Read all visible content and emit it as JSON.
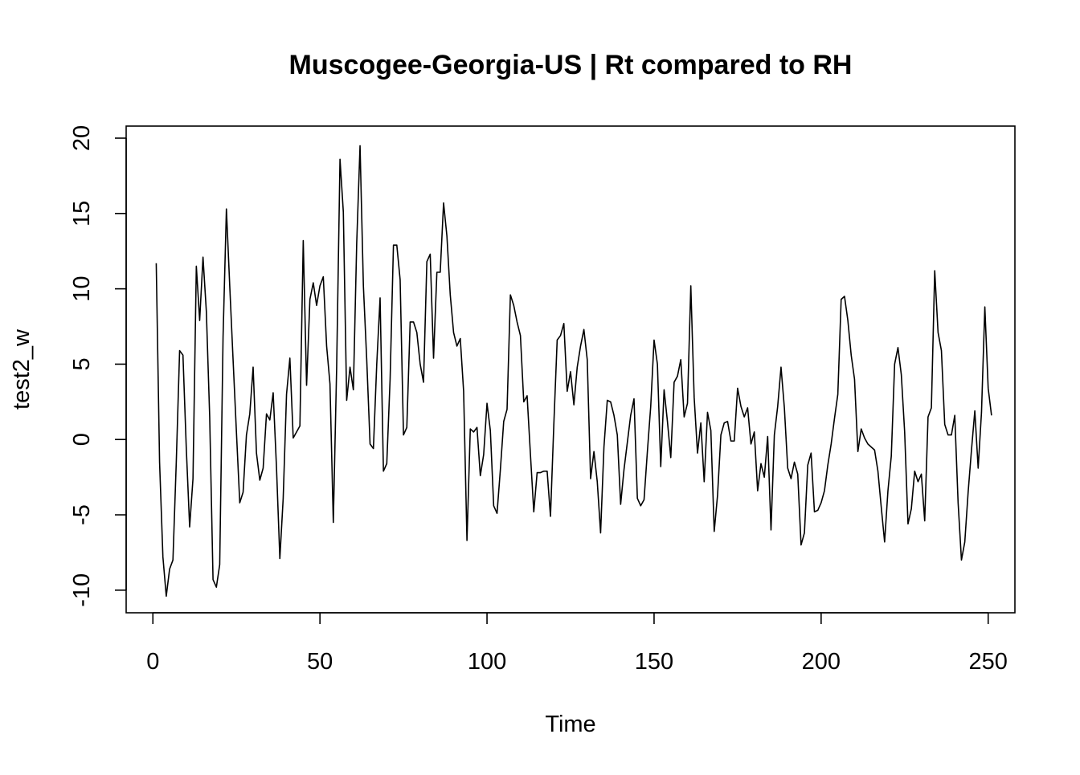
{
  "chart_data": {
    "type": "line",
    "title": "Muscogee-Georgia-US | Rt compared to RH",
    "xlabel": "Time",
    "ylabel": "test2_w",
    "xlim": [
      -8,
      258
    ],
    "ylim": [
      -11.5,
      20.8
    ],
    "x_ticks": [
      0,
      50,
      100,
      150,
      200,
      250
    ],
    "y_ticks": [
      -10,
      -5,
      0,
      5,
      10,
      15,
      20
    ],
    "grid": false,
    "legend": "none",
    "line_color": "#000000",
    "x_start": 1,
    "values": [
      11.7,
      -1.5,
      -7.8,
      -10.4,
      -8.6,
      -8.0,
      -1.5,
      5.9,
      5.6,
      -0.6,
      -5.8,
      -2.6,
      11.5,
      7.9,
      12.1,
      8.5,
      1.5,
      -9.3,
      -9.8,
      -8.3,
      6.8,
      15.3,
      10.2,
      5.3,
      0.5,
      -4.2,
      -3.5,
      0.3,
      1.7,
      4.8,
      -0.9,
      -2.7,
      -1.9,
      1.7,
      1.3,
      3.1,
      -1.9,
      -7.9,
      -3.9,
      3.0,
      5.4,
      0.1,
      0.5,
      0.9,
      13.2,
      3.6,
      9.3,
      10.4,
      8.9,
      10.2,
      10.8,
      6.2,
      3.7,
      -5.5,
      4.8,
      18.6,
      15.1,
      2.6,
      4.8,
      3.3,
      13.0,
      19.5,
      10.2,
      5.3,
      -0.3,
      -0.6,
      5.0,
      9.4,
      -2.1,
      -1.6,
      4.0,
      12.9,
      12.9,
      10.6,
      0.3,
      0.8,
      7.8,
      7.8,
      7.1,
      5.0,
      3.8,
      11.8,
      12.3,
      5.4,
      11.1,
      11.1,
      15.7,
      13.5,
      9.6,
      7.1,
      6.2,
      6.7,
      3.2,
      -6.7,
      0.7,
      0.5,
      0.8,
      -2.4,
      -1.0,
      2.4,
      0.6,
      -4.4,
      -4.9,
      -2.0,
      1.2,
      2.0,
      9.6,
      8.9,
      7.8,
      6.9,
      2.5,
      2.9,
      -1.0,
      -4.8,
      -2.2,
      -2.2,
      -2.1,
      -2.1,
      -5.1,
      1.0,
      6.6,
      6.9,
      7.7,
      3.2,
      4.5,
      2.3,
      4.8,
      6.2,
      7.3,
      5.3,
      -2.6,
      -0.8,
      -2.8,
      -6.2,
      -0.5,
      2.6,
      2.5,
      1.6,
      0.3,
      -4.3,
      -2.0,
      -0.2,
      1.6,
      2.7,
      -3.9,
      -4.4,
      -4.0,
      -0.8,
      2.2,
      6.6,
      5.0,
      -1.8,
      3.3,
      1.2,
      -1.2,
      3.8,
      4.2,
      5.3,
      1.5,
      2.4,
      10.2,
      2.8,
      -0.9,
      1.1,
      -2.8,
      1.8,
      0.6,
      -6.1,
      -3.7,
      0.3,
      1.1,
      1.2,
      -0.1,
      -0.1,
      3.4,
      2.2,
      1.5,
      2.1,
      -0.3,
      0.5,
      -3.4,
      -1.6,
      -2.5,
      0.2,
      -6.0,
      0.3,
      2.2,
      4.8,
      2.1,
      -1.9,
      -2.6,
      -1.5,
      -2.3,
      -7.0,
      -6.2,
      -1.7,
      -0.9,
      -4.8,
      -4.7,
      -4.2,
      -3.4,
      -1.7,
      -0.3,
      1.4,
      3.0,
      9.3,
      9.5,
      7.9,
      5.6,
      4.0,
      -0.8,
      0.7,
      0.1,
      -0.3,
      -0.5,
      -0.7,
      -2.1,
      -4.5,
      -6.8,
      -3.4,
      -1.1,
      5.0,
      6.1,
      4.3,
      0.5,
      -5.6,
      -4.6,
      -2.1,
      -2.8,
      -2.3,
      -5.4,
      1.5,
      2.1,
      11.2,
      7.1,
      5.9,
      1.0,
      0.3,
      0.3,
      1.6,
      -4.2,
      -8.0,
      -6.8,
      -3.5,
      -0.7,
      1.9,
      -1.9,
      1.8,
      8.8,
      3.4,
      1.6
    ]
  }
}
